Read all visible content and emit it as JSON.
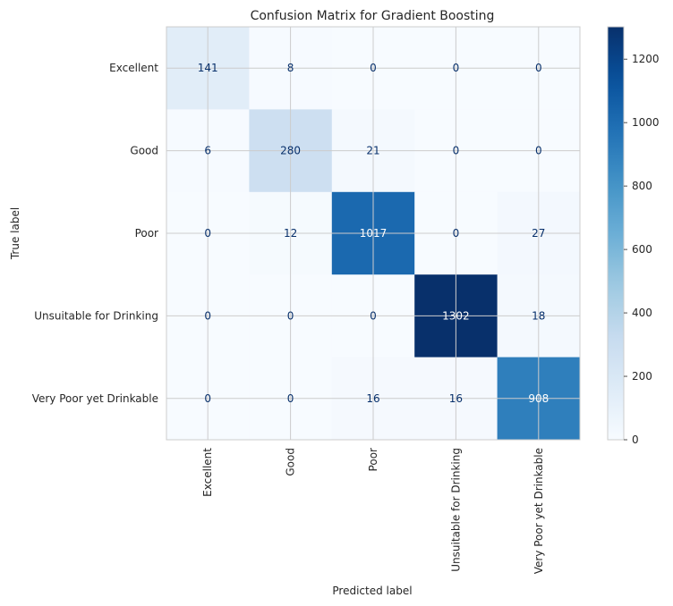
{
  "chart_data": {
    "type": "heatmap",
    "title": "Confusion Matrix for Gradient Boosting",
    "xlabel": "Predicted label",
    "ylabel": "True label",
    "row_labels": [
      "Excellent",
      "Good",
      "Poor",
      "Unsuitable for Drinking",
      "Very Poor yet Drinkable"
    ],
    "col_labels": [
      "Excellent",
      "Good",
      "Poor",
      "Unsuitable for Drinking",
      "Very Poor yet Drinkable"
    ],
    "values": [
      [
        141,
        8,
        0,
        0,
        0
      ],
      [
        6,
        280,
        21,
        0,
        0
      ],
      [
        0,
        12,
        1017,
        0,
        27
      ],
      [
        0,
        0,
        0,
        1302,
        18
      ],
      [
        0,
        0,
        16,
        16,
        908
      ]
    ],
    "colormap": "Blues",
    "colorbar": {
      "range": [
        0,
        1302
      ],
      "ticks": [
        0,
        200,
        400,
        600,
        800,
        1000,
        1200
      ]
    },
    "grid": true,
    "colors": {
      "grid": "#cccccc",
      "text_dark_cell": "#ffffff",
      "text_light_cell": "#08306b"
    }
  }
}
